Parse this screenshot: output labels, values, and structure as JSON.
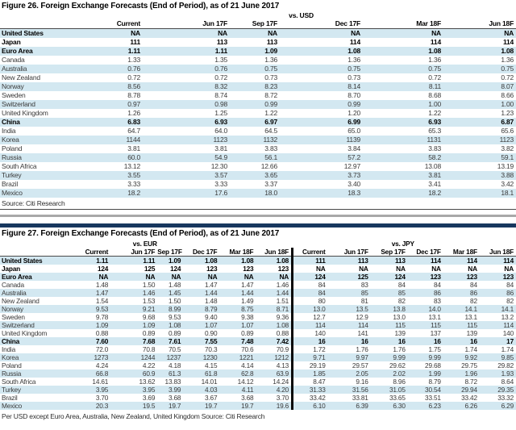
{
  "figure26": {
    "title": "Figure 26. Foreign Exchange Forecasts (End of Period), as of 21 June 2017",
    "group_label": "vs. USD",
    "columns": [
      "Current",
      "Jun 17F",
      "Sep 17F",
      "Dec 17F",
      "Mar 18F",
      "Jun 18F"
    ],
    "rows": [
      {
        "label": "United States",
        "bold": true,
        "values": [
          "NA",
          "NA",
          "NA",
          "NA",
          "NA",
          "NA"
        ]
      },
      {
        "label": "Japan",
        "bold": true,
        "values": [
          "111",
          "113",
          "113",
          "114",
          "114",
          "114"
        ]
      },
      {
        "label": "Euro Area",
        "bold": true,
        "values": [
          "1.11",
          "1.11",
          "1.09",
          "1.08",
          "1.08",
          "1.08"
        ]
      },
      {
        "label": "Canada",
        "bold": false,
        "values": [
          "1.33",
          "1.35",
          "1.36",
          "1.36",
          "1.36",
          "1.36"
        ]
      },
      {
        "label": "Australia",
        "bold": false,
        "values": [
          "0.76",
          "0.76",
          "0.75",
          "0.75",
          "0.75",
          "0.75"
        ]
      },
      {
        "label": "New Zealand",
        "bold": false,
        "values": [
          "0.72",
          "0.72",
          "0.73",
          "0.73",
          "0.72",
          "0.72"
        ]
      },
      {
        "label": "Norway",
        "bold": false,
        "values": [
          "8.56",
          "8.32",
          "8.23",
          "8.14",
          "8.11",
          "8.07"
        ]
      },
      {
        "label": "Sweden",
        "bold": false,
        "values": [
          "8.78",
          "8.74",
          "8.72",
          "8.70",
          "8.68",
          "8.66"
        ]
      },
      {
        "label": "Switzerland",
        "bold": false,
        "values": [
          "0.97",
          "0.98",
          "0.99",
          "0.99",
          "1.00",
          "1.00"
        ]
      },
      {
        "label": "United Kingdom",
        "bold": false,
        "values": [
          "1.26",
          "1.25",
          "1.22",
          "1.20",
          "1.22",
          "1.23"
        ]
      },
      {
        "label": "China",
        "bold": true,
        "values": [
          "6.83",
          "6.93",
          "6.97",
          "6.99",
          "6.93",
          "6.87"
        ]
      },
      {
        "label": "India",
        "bold": false,
        "values": [
          "64.7",
          "64.0",
          "64.5",
          "65.0",
          "65.3",
          "65.6"
        ]
      },
      {
        "label": "Korea",
        "bold": false,
        "values": [
          "1144",
          "1123",
          "1132",
          "1139",
          "1131",
          "1123"
        ]
      },
      {
        "label": "Poland",
        "bold": false,
        "values": [
          "3.81",
          "3.81",
          "3.83",
          "3.84",
          "3.83",
          "3.82"
        ]
      },
      {
        "label": "Russia",
        "bold": false,
        "values": [
          "60.0",
          "54.9",
          "56.1",
          "57.2",
          "58.2",
          "59.1"
        ]
      },
      {
        "label": "South Africa",
        "bold": false,
        "values": [
          "13.12",
          "12.30",
          "12.66",
          "12.97",
          "13.08",
          "13.19"
        ]
      },
      {
        "label": "Turkey",
        "bold": false,
        "values": [
          "3.55",
          "3.57",
          "3.65",
          "3.73",
          "3.81",
          "3.88"
        ]
      },
      {
        "label": "Brazil",
        "bold": false,
        "values": [
          "3.33",
          "3.33",
          "3.37",
          "3.40",
          "3.41",
          "3.42"
        ]
      },
      {
        "label": "Mexico",
        "bold": false,
        "values": [
          "18.2",
          "17.6",
          "18.0",
          "18.3",
          "18.2",
          "18.1"
        ]
      }
    ],
    "source": "Source: Citi Research"
  },
  "figure27": {
    "title": "Figure 27. Foreign Exchange Forecasts (End of Period), as of 21 June 2017",
    "group_labels": [
      "vs. EUR",
      "vs. JPY"
    ],
    "columns": [
      "Current",
      "Jun 17F",
      "Sep 17F",
      "Dec 17F",
      "Mar 18F",
      "Jun 18F",
      "Current",
      "Jun 17F",
      "Sep 17F",
      "Dec 17F",
      "Mar 18F",
      "Jun 18F"
    ],
    "rows": [
      {
        "label": "United States",
        "bold": true,
        "values": [
          "1.11",
          "1.11",
          "1.09",
          "1.08",
          "1.08",
          "1.08",
          "111",
          "113",
          "113",
          "114",
          "114",
          "114"
        ]
      },
      {
        "label": "Japan",
        "bold": true,
        "values": [
          "124",
          "125",
          "124",
          "123",
          "123",
          "123",
          "NA",
          "NA",
          "NA",
          "NA",
          "NA",
          "NA"
        ]
      },
      {
        "label": "Euro Area",
        "bold": true,
        "values": [
          "NA",
          "NA",
          "NA",
          "NA",
          "NA",
          "NA",
          "124",
          "125",
          "124",
          "123",
          "123",
          "123"
        ]
      },
      {
        "label": "Canada",
        "bold": false,
        "values": [
          "1.48",
          "1.50",
          "1.48",
          "1.47",
          "1.47",
          "1.46",
          "84",
          "83",
          "84",
          "84",
          "84",
          "84"
        ]
      },
      {
        "label": "Australia",
        "bold": false,
        "values": [
          "1.47",
          "1.46",
          "1.45",
          "1.44",
          "1.44",
          "1.44",
          "84",
          "85",
          "85",
          "86",
          "86",
          "86"
        ]
      },
      {
        "label": "New Zealand",
        "bold": false,
        "values": [
          "1.54",
          "1.53",
          "1.50",
          "1.48",
          "1.49",
          "1.51",
          "80",
          "81",
          "82",
          "83",
          "82",
          "82"
        ]
      },
      {
        "label": "Norway",
        "bold": false,
        "values": [
          "9.53",
          "9.21",
          "8.99",
          "8.79",
          "8.75",
          "8.71",
          "13.0",
          "13.5",
          "13.8",
          "14.0",
          "14.1",
          "14.1"
        ]
      },
      {
        "label": "Sweden",
        "bold": false,
        "values": [
          "9.78",
          "9.68",
          "9.53",
          "9.40",
          "9.38",
          "9.36",
          "12.7",
          "12.9",
          "13.0",
          "13.1",
          "13.1",
          "13.2"
        ]
      },
      {
        "label": "Switzerland",
        "bold": false,
        "values": [
          "1.09",
          "1.09",
          "1.08",
          "1.07",
          "1.07",
          "1.08",
          "114",
          "114",
          "115",
          "115",
          "115",
          "114"
        ]
      },
      {
        "label": "United Kingdom",
        "bold": false,
        "values": [
          "0.88",
          "0.89",
          "0.89",
          "0.90",
          "0.89",
          "0.88",
          "140",
          "141",
          "139",
          "137",
          "139",
          "140"
        ]
      },
      {
        "label": "China",
        "bold": true,
        "values": [
          "7.60",
          "7.68",
          "7.61",
          "7.55",
          "7.48",
          "7.42",
          "16",
          "16",
          "16",
          "16",
          "16",
          "17"
        ]
      },
      {
        "label": "India",
        "bold": false,
        "values": [
          "72.0",
          "70.8",
          "70.5",
          "70.3",
          "70.6",
          "70.9",
          "1.72",
          "1.76",
          "1.76",
          "1.75",
          "1.74",
          "1.74"
        ]
      },
      {
        "label": "Korea",
        "bold": false,
        "values": [
          "1273",
          "1244",
          "1237",
          "1230",
          "1221",
          "1212",
          "9.71",
          "9.97",
          "9.99",
          "9.99",
          "9.92",
          "9.85"
        ]
      },
      {
        "label": "Poland",
        "bold": false,
        "values": [
          "4.24",
          "4.22",
          "4.18",
          "4.15",
          "4.14",
          "4.13",
          "29.19",
          "29.57",
          "29.62",
          "29.68",
          "29.75",
          "29.82"
        ]
      },
      {
        "label": "Russia",
        "bold": false,
        "values": [
          "66.8",
          "60.9",
          "61.3",
          "61.8",
          "62.8",
          "63.9",
          "1.85",
          "2.05",
          "2.02",
          "1.99",
          "1.96",
          "1.93"
        ]
      },
      {
        "label": "South Africa",
        "bold": false,
        "values": [
          "14.61",
          "13.62",
          "13.83",
          "14.01",
          "14.12",
          "14.24",
          "8.47",
          "9.16",
          "8.96",
          "8.79",
          "8.72",
          "8.64"
        ]
      },
      {
        "label": "Turkey",
        "bold": false,
        "values": [
          "3.95",
          "3.95",
          "3.99",
          "4.03",
          "4.11",
          "4.20",
          "31.33",
          "31.56",
          "31.05",
          "30.54",
          "29.94",
          "29.35"
        ]
      },
      {
        "label": "Brazil",
        "bold": false,
        "values": [
          "3.70",
          "3.69",
          "3.68",
          "3.67",
          "3.68",
          "3.70",
          "33.42",
          "33.81",
          "33.65",
          "33.51",
          "33.42",
          "33.32"
        ]
      },
      {
        "label": "Mexico",
        "bold": false,
        "values": [
          "20.3",
          "19.5",
          "19.7",
          "19.7",
          "19.7",
          "19.6",
          "6.10",
          "6.39",
          "6.30",
          "6.23",
          "6.26",
          "6.29"
        ]
      }
    ],
    "footnote": "Per USD except Euro Area, Australia, New Zealand, United Kingdom  Source: Citi Research"
  },
  "colors": {
    "row_stripe": "#d3e8f1",
    "accent_bar": "#17375e",
    "section_divider": "#a8a8a8"
  }
}
